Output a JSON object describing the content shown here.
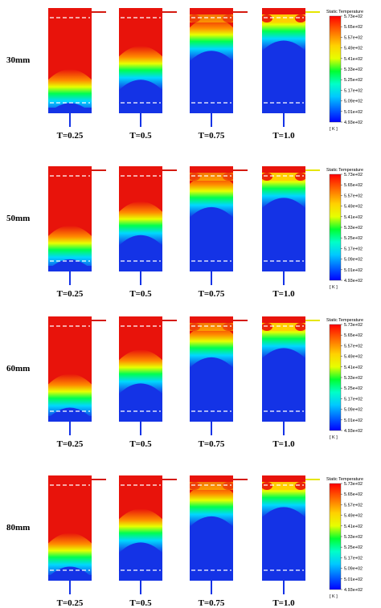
{
  "rows": [
    {
      "label": "30mm",
      "panels": [
        {
          "time": "T=0.25",
          "front": 0.7,
          "surface": 0.0
        },
        {
          "time": "T=0.5",
          "front": 0.45,
          "surface": 0.0
        },
        {
          "time": "T=0.75",
          "front": 0.14,
          "surface": 0.55
        },
        {
          "time": "T=1.0",
          "front": 0.03,
          "surface": 0.9
        }
      ]
    },
    {
      "label": "50mm",
      "panels": [
        {
          "time": "T=0.25",
          "front": 0.68,
          "surface": 0.0
        },
        {
          "time": "T=0.5",
          "front": 0.42,
          "surface": 0.0
        },
        {
          "time": "T=0.75",
          "front": 0.12,
          "surface": 0.55
        },
        {
          "time": "T=1.0",
          "front": 0.02,
          "surface": 0.9
        }
      ]
    },
    {
      "label": "60mm",
      "panels": [
        {
          "time": "T=0.25",
          "front": 0.66,
          "surface": 0.0
        },
        {
          "time": "T=0.5",
          "front": 0.4,
          "surface": 0.0
        },
        {
          "time": "T=0.75",
          "front": 0.12,
          "surface": 0.55
        },
        {
          "time": "T=1.0",
          "front": 0.02,
          "surface": 0.9
        }
      ]
    },
    {
      "label": "80mm",
      "panels": [
        {
          "time": "T=0.25",
          "front": 0.66,
          "surface": 0.0
        },
        {
          "time": "T=0.5",
          "front": 0.4,
          "surface": 0.0
        },
        {
          "time": "T=0.75",
          "front": 0.12,
          "surface": 0.55
        },
        {
          "time": "T=1.0",
          "front": 0.02,
          "surface": 0.9
        }
      ]
    }
  ],
  "legend": {
    "title": "Static Temperature",
    "unit": "[ K ]",
    "ticks": [
      "5.73e+02",
      "5.65e+02",
      "5.57e+02",
      "5.49e+02",
      "5.41e+02",
      "5.33e+02",
      "5.25e+02",
      "5.17e+02",
      "5.09e+02",
      "5.01e+02",
      "4.93e+02"
    ]
  },
  "colors": {
    "hot": "#e8130b",
    "cold": "#1433e6",
    "gradient": [
      "#ff0000",
      "#ff6a00",
      "#ffd200",
      "#ffff00",
      "#00ff00",
      "#00ffc8",
      "#00c8ff",
      "#0064ff",
      "#0000ff"
    ]
  }
}
